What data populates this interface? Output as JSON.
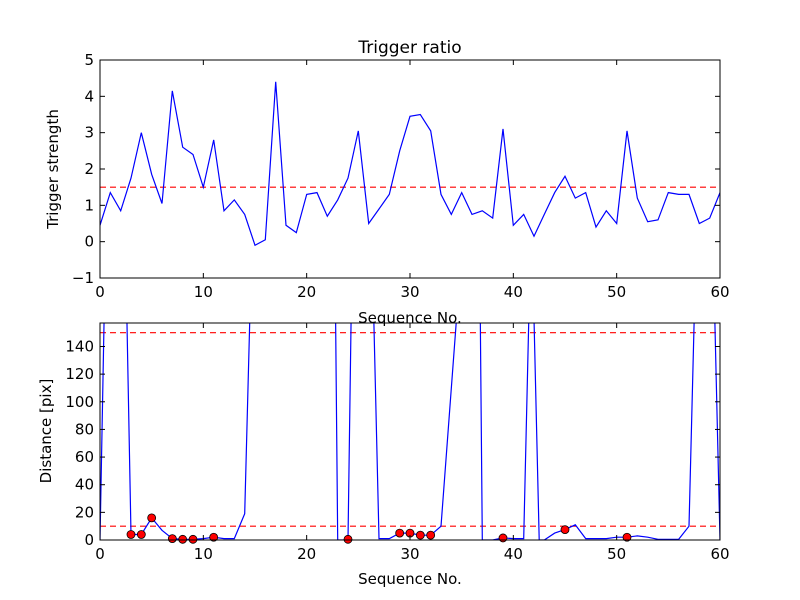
{
  "chart_data": [
    {
      "type": "line",
      "title": "Trigger ratio",
      "xlabel": "Sequence No.",
      "ylabel": "Trigger strength",
      "xlim": [
        0,
        60
      ],
      "ylim": [
        -1,
        5
      ],
      "xticks": [
        0,
        10,
        20,
        30,
        40,
        50,
        60
      ],
      "yticks": [
        -1,
        0,
        1,
        2,
        3,
        4,
        5
      ],
      "xtick_labels": [
        "0",
        "10",
        "20",
        "30",
        "40",
        "50",
        "60"
      ],
      "ytick_labels": [
        "−1",
        "0",
        "1",
        "2",
        "3",
        "4",
        "5"
      ],
      "grid": false,
      "line_color": "#0000ff",
      "threshold": {
        "y": 1.5,
        "color": "#ff0000",
        "style": "dashed"
      },
      "series": [
        {
          "x": [
            0,
            1,
            2,
            3,
            4,
            5,
            6,
            7,
            8,
            9,
            10,
            11,
            12,
            13,
            14,
            15,
            16,
            17,
            18,
            19,
            20,
            21,
            22,
            23,
            24,
            25,
            26,
            27,
            28,
            29,
            30,
            31,
            32,
            33,
            34,
            35,
            36,
            37,
            38,
            39,
            40,
            41,
            42,
            43,
            44,
            45,
            46,
            47,
            48,
            49,
            50,
            51,
            52,
            53,
            54,
            55,
            56,
            57,
            58,
            59,
            60
          ],
          "y": [
            0.45,
            1.35,
            0.85,
            1.75,
            3.0,
            1.85,
            1.05,
            4.15,
            2.6,
            2.4,
            1.5,
            2.8,
            0.85,
            1.15,
            0.75,
            -0.1,
            0.05,
            4.4,
            0.45,
            0.25,
            1.3,
            1.35,
            0.7,
            1.15,
            1.75,
            3.05,
            0.5,
            0.9,
            1.3,
            2.5,
            3.45,
            3.5,
            3.05,
            1.3,
            0.75,
            1.35,
            0.75,
            0.85,
            0.65,
            3.1,
            0.45,
            0.75,
            0.15,
            0.75,
            1.35,
            1.8,
            1.2,
            1.35,
            0.4,
            0.85,
            0.5,
            3.05,
            1.2,
            0.55,
            0.6,
            1.35,
            1.3,
            1.3,
            0.5,
            0.65,
            1.35
          ]
        }
      ]
    },
    {
      "type": "line",
      "title": "",
      "xlabel": "Sequence No.",
      "ylabel": "Distance [pix]",
      "xlim": [
        0,
        60
      ],
      "ylim": [
        0,
        157
      ],
      "xticks": [
        0,
        10,
        20,
        30,
        40,
        50,
        60
      ],
      "yticks": [
        0,
        20,
        40,
        60,
        80,
        100,
        120,
        140
      ],
      "xtick_labels": [
        "0",
        "10",
        "20",
        "30",
        "40",
        "50",
        "60"
      ],
      "ytick_labels": [
        "0",
        "20",
        "40",
        "60",
        "80",
        "100",
        "120",
        "140"
      ],
      "grid": false,
      "line_color": "#0000ff",
      "marker_color": "#ff0000",
      "thresholds": [
        {
          "y": 150,
          "color": "#ff0000",
          "style": "dashed"
        },
        {
          "y": 10,
          "color": "#ff0000",
          "style": "dashed"
        }
      ],
      "series": [
        {
          "x": [
            0,
            0.4,
            2.6,
            3,
            4,
            5,
            6,
            7,
            8,
            9,
            10,
            11,
            12,
            13,
            14,
            14.5,
            22.8,
            23,
            24,
            24.3,
            26.5,
            27,
            28,
            29,
            30,
            31,
            32,
            33,
            34.5,
            36.8,
            37,
            38,
            39,
            40,
            41,
            41.5,
            42,
            42.5,
            43,
            44,
            45,
            46,
            47,
            48,
            49,
            50,
            51,
            52,
            53,
            54,
            55,
            56,
            57,
            57.5,
            58,
            59,
            59.5,
            60
          ],
          "y": [
            0,
            160,
            160,
            4,
            4,
            16,
            7,
            1,
            0.5,
            0.5,
            1,
            2,
            1,
            1,
            19,
            160,
            160,
            0,
            0,
            160,
            160,
            1,
            1,
            5,
            5,
            3.5,
            3.5,
            10,
            160,
            160,
            0,
            0,
            1.5,
            1,
            1,
            160,
            160,
            0,
            0,
            5,
            7.5,
            11,
            1,
            1,
            1,
            2,
            2,
            3,
            2,
            0.5,
            0.5,
            0.5,
            10,
            160,
            160,
            160,
            160,
            0
          ]
        }
      ],
      "markers": {
        "x": [
          3,
          4,
          5,
          7,
          8,
          9,
          11,
          24,
          29,
          30,
          31,
          32,
          39,
          45,
          51
        ],
        "y": [
          4,
          4,
          16,
          1,
          0.5,
          0.5,
          2,
          0.5,
          5,
          5,
          3.5,
          3.5,
          1.5,
          7.5,
          2
        ]
      }
    }
  ]
}
